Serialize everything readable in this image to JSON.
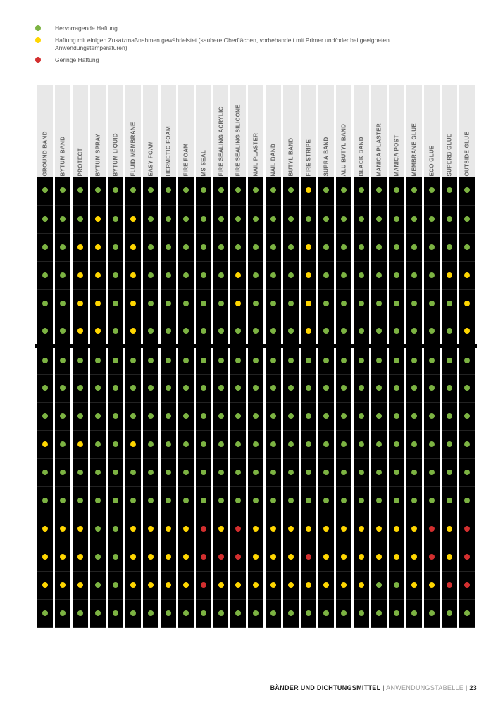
{
  "colors": {
    "green": "#7cb342",
    "yellow": "#ffd600",
    "red": "#d32f2f",
    "header_bg": "#e8e8e8",
    "cell_bg": "#000000",
    "page_bg": "#ffffff"
  },
  "legend": [
    {
      "color": "green",
      "text": "Hervorragende Haftung"
    },
    {
      "color": "yellow",
      "text": "Haftung mit einigen Zusatzmaßnahmen gewährleistet (saubere Oberflächen, vorbehandelt mit Primer und/oder bei geeigneten Anwendungstemperaturen)"
    },
    {
      "color": "red",
      "text": "Geringe Haftung"
    }
  ],
  "columns": [
    "GROUND BAND",
    "BYTUM BAND",
    "PROTECT",
    "BYTUM SPRAY",
    "BYTUM LIQUID",
    "FLUID MEMBRANE",
    "EASY FOAM",
    "HERMETIC FOAM",
    "FIRE FOAM",
    "MS SEAL",
    "FIRE SEALING ACRYLIC",
    "FIRE SEALING SILICONE",
    "NAIL PLASTER",
    "NAIL BAND",
    "BUTYL BAND",
    "FIRE STRIPE",
    "SUPRA BAND",
    "ALU BUTYL BAND",
    "BLACK BAND",
    "MANICA PLASTER",
    "MANICA POST",
    "MEMBRANE GLUE",
    "ECO GLUE",
    "SUPERB GLUE",
    "OUTSIDE GLUE"
  ],
  "group_a_rows": 6,
  "matrix": [
    [
      "g",
      "g",
      "g",
      "g",
      "g",
      "g",
      "g",
      "g",
      "g",
      "g",
      "g",
      "g",
      "g",
      "g",
      "g",
      "y",
      "g",
      "g",
      "g",
      "g",
      "g",
      "g",
      "g",
      "g",
      "g"
    ],
    [
      "g",
      "g",
      "g",
      "y",
      "g",
      "y",
      "g",
      "g",
      "g",
      "g",
      "g",
      "g",
      "g",
      "g",
      "g",
      "g",
      "g",
      "g",
      "g",
      "g",
      "g",
      "g",
      "g",
      "g",
      "g"
    ],
    [
      "g",
      "g",
      "y",
      "y",
      "g",
      "y",
      "g",
      "g",
      "g",
      "g",
      "g",
      "g",
      "g",
      "g",
      "g",
      "y",
      "g",
      "g",
      "g",
      "g",
      "g",
      "g",
      "g",
      "g",
      "g"
    ],
    [
      "g",
      "g",
      "y",
      "y",
      "g",
      "y",
      "g",
      "g",
      "g",
      "g",
      "g",
      "y",
      "g",
      "g",
      "g",
      "y",
      "g",
      "g",
      "g",
      "g",
      "g",
      "g",
      "g",
      "y",
      "y"
    ],
    [
      "g",
      "g",
      "y",
      "y",
      "g",
      "y",
      "g",
      "g",
      "g",
      "g",
      "g",
      "y",
      "g",
      "g",
      "g",
      "y",
      "g",
      "g",
      "g",
      "g",
      "g",
      "g",
      "g",
      "g",
      "y"
    ],
    [
      "g",
      "g",
      "y",
      "y",
      "g",
      "y",
      "g",
      "g",
      "g",
      "g",
      "g",
      "g",
      "g",
      "g",
      "g",
      "y",
      "g",
      "g",
      "g",
      "g",
      "g",
      "g",
      "g",
      "g",
      "y"
    ],
    [
      "g",
      "g",
      "g",
      "g",
      "g",
      "g",
      "g",
      "g",
      "g",
      "g",
      "g",
      "g",
      "g",
      "g",
      "g",
      "g",
      "g",
      "g",
      "g",
      "g",
      "g",
      "g",
      "g",
      "g",
      "g"
    ],
    [
      "g",
      "g",
      "g",
      "g",
      "g",
      "g",
      "g",
      "g",
      "g",
      "g",
      "g",
      "g",
      "g",
      "g",
      "g",
      "g",
      "g",
      "g",
      "g",
      "g",
      "g",
      "g",
      "g",
      "g",
      "g"
    ],
    [
      "g",
      "g",
      "g",
      "g",
      "g",
      "g",
      "g",
      "g",
      "g",
      "g",
      "g",
      "g",
      "g",
      "g",
      "g",
      "g",
      "g",
      "g",
      "g",
      "g",
      "g",
      "g",
      "g",
      "g",
      "g"
    ],
    [
      "y",
      "g",
      "y",
      "g",
      "g",
      "y",
      "g",
      "g",
      "g",
      "g",
      "g",
      "g",
      "g",
      "g",
      "g",
      "g",
      "g",
      "g",
      "g",
      "g",
      "g",
      "g",
      "g",
      "g",
      "g"
    ],
    [
      "g",
      "g",
      "g",
      "g",
      "g",
      "g",
      "g",
      "g",
      "g",
      "g",
      "g",
      "g",
      "g",
      "g",
      "g",
      "g",
      "g",
      "g",
      "g",
      "g",
      "g",
      "g",
      "g",
      "g",
      "g"
    ],
    [
      "g",
      "g",
      "g",
      "g",
      "g",
      "g",
      "g",
      "g",
      "g",
      "g",
      "g",
      "g",
      "g",
      "g",
      "g",
      "g",
      "g",
      "g",
      "g",
      "g",
      "g",
      "g",
      "g",
      "g",
      "g"
    ],
    [
      "y",
      "y",
      "y",
      "g",
      "g",
      "y",
      "y",
      "y",
      "y",
      "r",
      "y",
      "r",
      "y",
      "y",
      "y",
      "y",
      "y",
      "y",
      "y",
      "y",
      "y",
      "y",
      "r",
      "y",
      "r"
    ],
    [
      "y",
      "y",
      "y",
      "g",
      "g",
      "y",
      "y",
      "y",
      "y",
      "r",
      "r",
      "r",
      "y",
      "y",
      "y",
      "r",
      "y",
      "y",
      "y",
      "y",
      "y",
      "y",
      "r",
      "y",
      "r"
    ],
    [
      "y",
      "y",
      "y",
      "g",
      "g",
      "y",
      "y",
      "y",
      "y",
      "r",
      "y",
      "y",
      "y",
      "y",
      "y",
      "y",
      "y",
      "y",
      "y",
      "g",
      "g",
      "y",
      "y",
      "r",
      "r"
    ],
    [
      "g",
      "g",
      "g",
      "g",
      "g",
      "g",
      "g",
      "g",
      "g",
      "g",
      "g",
      "g",
      "g",
      "g",
      "g",
      "g",
      "g",
      "g",
      "g",
      "g",
      "g",
      "g",
      "g",
      "g",
      "g"
    ]
  ],
  "footer": {
    "section": "BÄNDER UND DICHTUNGSMITTEL",
    "sep": " | ",
    "subsection": "ANWENDUNGSTABELLE",
    "page": "23"
  }
}
